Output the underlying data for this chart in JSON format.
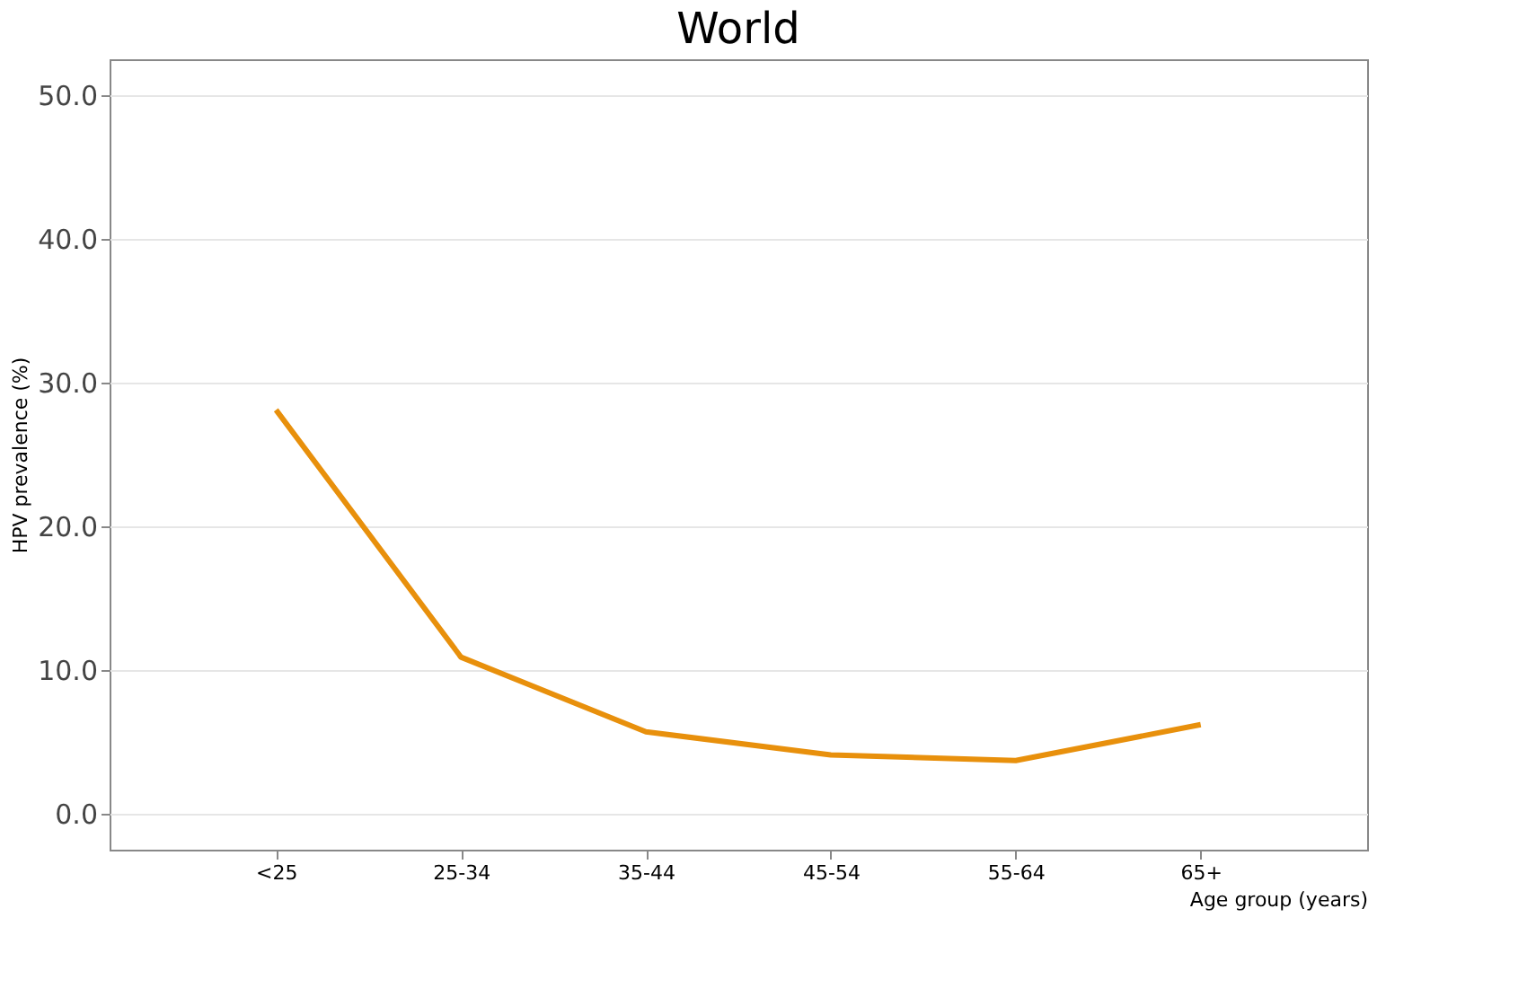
{
  "chart_data": {
    "type": "line",
    "title": "World",
    "xlabel": "Age group (years)",
    "ylabel": "HPV prevalence (%)",
    "categories": [
      "<25",
      "25-34",
      "35-44",
      "45-54",
      "55-64",
      "65+"
    ],
    "series": [
      {
        "color": "#e8900c",
        "values": [
          28.1,
          10.9,
          5.7,
          4.1,
          3.7,
          6.2
        ]
      }
    ],
    "ylim": [
      -2.5,
      52.5
    ],
    "yticks": [
      {
        "value": 0,
        "label": "0.0"
      },
      {
        "value": 10,
        "label": "10.0"
      },
      {
        "value": 20,
        "label": "20.0"
      },
      {
        "value": 30,
        "label": "30.0"
      },
      {
        "value": 40,
        "label": "40.0"
      },
      {
        "value": 50,
        "label": "50.0"
      }
    ],
    "grid": "y",
    "marker": "none",
    "line_style": "solid"
  }
}
